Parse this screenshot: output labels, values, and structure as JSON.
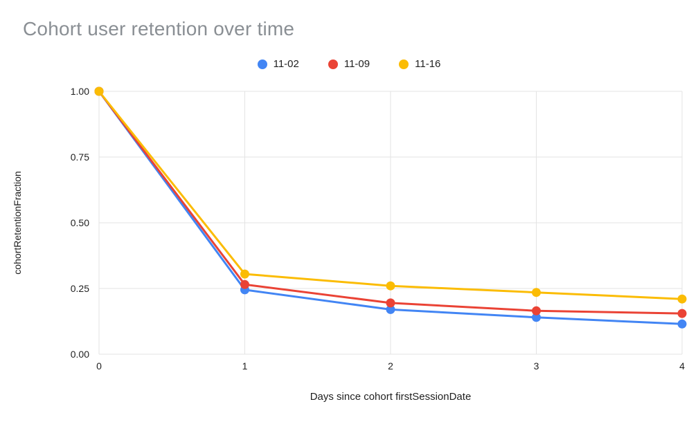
{
  "title": "Cohort user retention over time",
  "chart_data": {
    "type": "line",
    "title": "Cohort user retention over time",
    "x": [
      0,
      1,
      2,
      3,
      4
    ],
    "xticks": [
      0,
      1,
      2,
      3,
      4
    ],
    "xtick_labels": [
      "0",
      "1",
      "2",
      "3",
      "4"
    ],
    "yticks": [
      0,
      0.25,
      0.5,
      0.75,
      1
    ],
    "ytick_labels": [
      "0.00",
      "0.25",
      "0.50",
      "0.75",
      "1.00"
    ],
    "ylim": [
      0,
      1
    ],
    "xlim": [
      0,
      4
    ],
    "xlabel": "Days since cohort firstSessionDate",
    "ylabel": "cohortRetentionFraction",
    "grid": true,
    "legend_position": "top",
    "gridline_color": "#e3e3e3",
    "series": [
      {
        "name": "11-02",
        "color": "#4285F4",
        "values": [
          1,
          0.245,
          0.17,
          0.14,
          0.115
        ]
      },
      {
        "name": "11-09",
        "color": "#EA4335",
        "values": [
          1,
          0.265,
          0.195,
          0.165,
          0.155
        ]
      },
      {
        "name": "11-16",
        "color": "#FBBC04",
        "values": [
          1,
          0.305,
          0.26,
          0.235,
          0.21
        ]
      }
    ]
  }
}
